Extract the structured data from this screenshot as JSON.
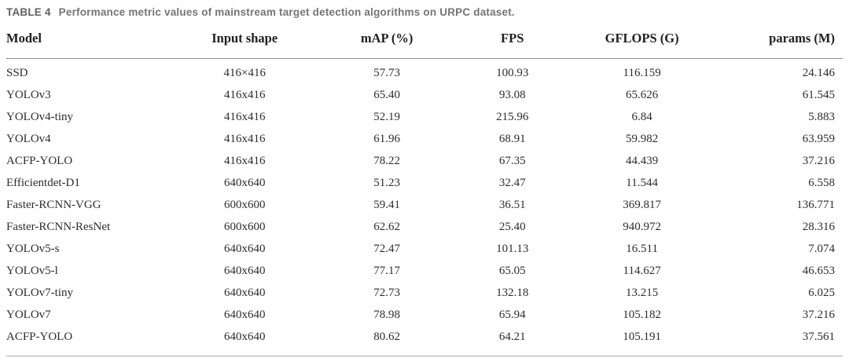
{
  "caption": {
    "label": "TABLE 4",
    "text": "Performance metric values of mainstream target detection algorithms on URPC dataset."
  },
  "table": {
    "columns": [
      "Model",
      "Input shape",
      "mAP (%)",
      "FPS",
      "GFLOPS (G)",
      "params (M)"
    ],
    "rows": [
      [
        "SSD",
        "416×416",
        "57.73",
        "100.93",
        "116.159",
        "24.146"
      ],
      [
        "YOLOv3",
        "416x416",
        "65.40",
        "93.08",
        "65.626",
        "61.545"
      ],
      [
        "YOLOv4-tiny",
        "416x416",
        "52.19",
        "215.96",
        "6.84",
        "5.883"
      ],
      [
        "YOLOv4",
        "416x416",
        "61.96",
        "68.91",
        "59.982",
        "63.959"
      ],
      [
        "ACFP-YOLO",
        "416x416",
        "78.22",
        "67.35",
        "44.439",
        "37.216"
      ],
      [
        "Efficientdet-D1",
        "640x640",
        "51.23",
        "32.47",
        "11.544",
        "6.558"
      ],
      [
        "Faster-RCNN-VGG",
        "600x600",
        "59.41",
        "36.51",
        "369.817",
        "136.771"
      ],
      [
        "Faster-RCNN-ResNet",
        "600x600",
        "62.62",
        "25.40",
        "940.972",
        "28.316"
      ],
      [
        "YOLOv5-s",
        "640x640",
        "72.47",
        "101.13",
        "16.511",
        "7.074"
      ],
      [
        "YOLOv5-l",
        "640x640",
        "77.17",
        "65.05",
        "114.627",
        "46.653"
      ],
      [
        "YOLOv7-tiny",
        "640x640",
        "72.73",
        "132.18",
        "13.215",
        "6.025"
      ],
      [
        "YOLOv7",
        "640x640",
        "78.98",
        "65.94",
        "105.182",
        "37.216"
      ],
      [
        "ACFP-YOLO",
        "640x640",
        "80.62",
        "64.21",
        "105.191",
        "37.561"
      ]
    ]
  },
  "colors": {
    "caption_text": "#6e6e6e",
    "body_text": "#2d2d2d",
    "rule": "#8f8f8f",
    "background": "#ffffff"
  }
}
